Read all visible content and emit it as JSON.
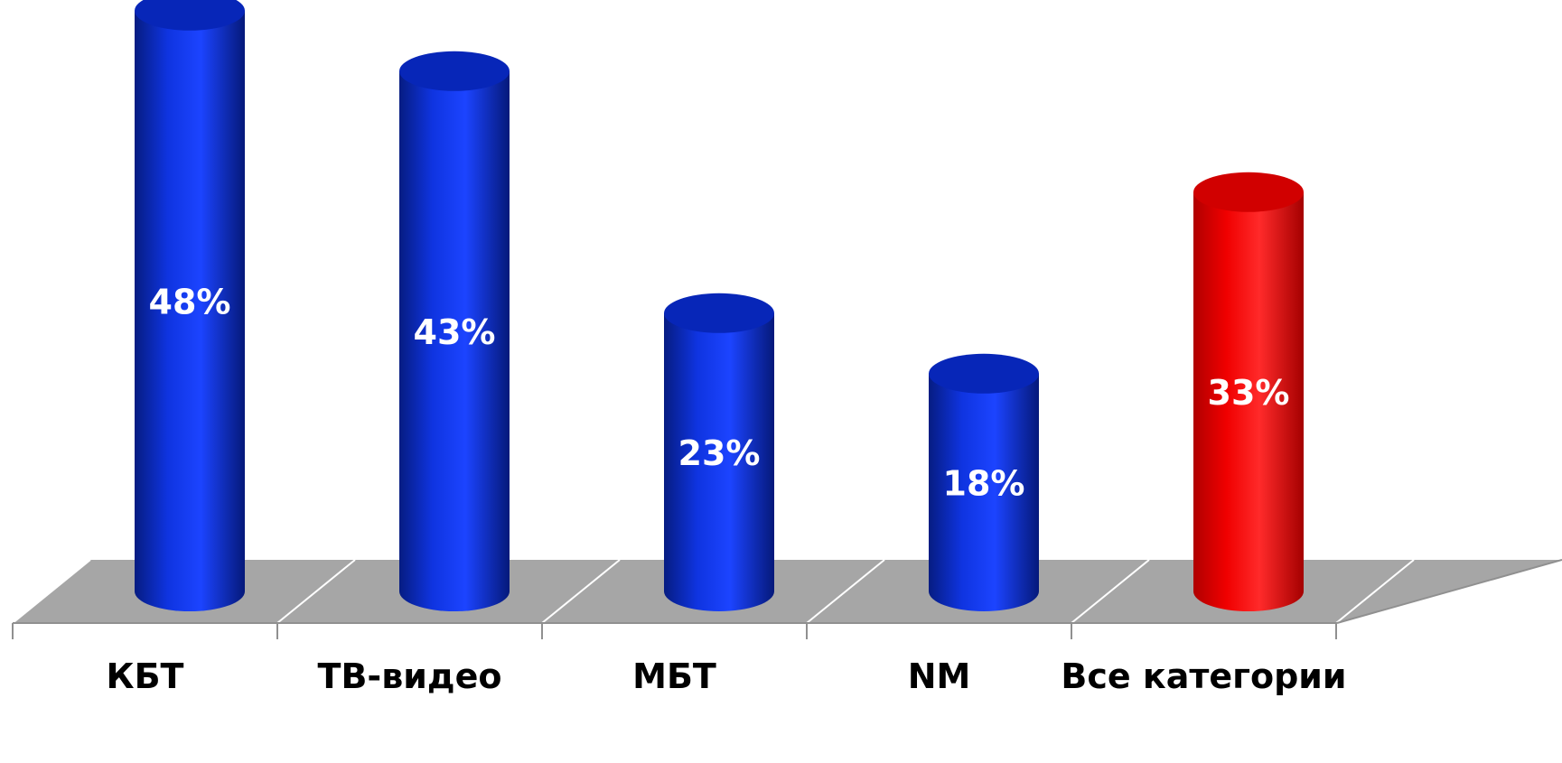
{
  "chart_data": {
    "type": "bar",
    "categories": [
      "КБТ",
      "ТВ-видео",
      "МБТ",
      "NM",
      "Все категории"
    ],
    "values": [
      48,
      43,
      23,
      18,
      33
    ],
    "data_labels": [
      "48%",
      "43%",
      "23%",
      "18%",
      "33%"
    ],
    "unit": "%",
    "ylim": [
      0,
      50
    ],
    "grid": false,
    "legend": "none",
    "colors": {
      "default_bar": "#0a2fd0",
      "highlight_bar": "#ff0000",
      "floor": "#a6a6a6"
    },
    "highlight_index": 4
  }
}
